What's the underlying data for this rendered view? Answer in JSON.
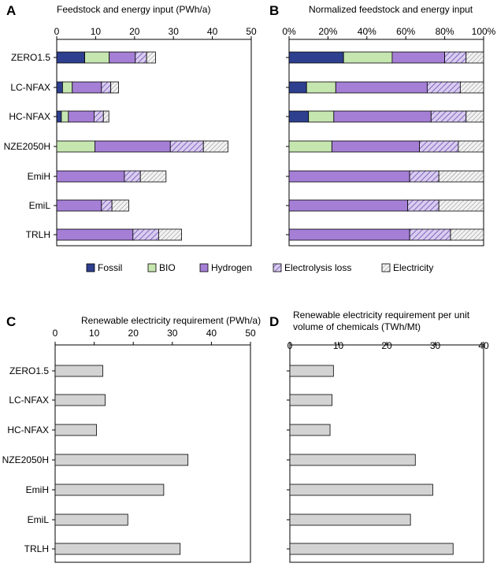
{
  "colors": {
    "fossil": "#2e3f8f",
    "bio": "#c6e6b0",
    "hydrogen": "#a57fd6",
    "electrolysis_loss_bg": "#d9ccf0",
    "electrolysis_loss_line": "#6a4fb0",
    "electricity_bg": "#f2f2f2",
    "electricity_line": "#888888",
    "renewable_bar": "#d3d3d3",
    "outline": "#000000"
  },
  "legend": [
    {
      "key": "fossil",
      "label": "Fossil"
    },
    {
      "key": "bio",
      "label": "BIO"
    },
    {
      "key": "hydrogen",
      "label": "Hydrogen"
    },
    {
      "key": "electrolysis_loss",
      "label": "Electrolysis loss"
    },
    {
      "key": "electricity",
      "label": "Electricity"
    }
  ],
  "chart_data": [
    {
      "panel": "A",
      "type": "bar",
      "orientation": "horizontal",
      "stacked": true,
      "title": "Feedstock and energy input (PWh/a)",
      "categories": [
        "ZERO1.5",
        "LC-NFAX",
        "HC-NFAX",
        "NZE2050H",
        "EmiH",
        "EmiL",
        "TRLH"
      ],
      "xlim": [
        0,
        50
      ],
      "ticks": [
        "0",
        "10",
        "20",
        "30",
        "40",
        "50"
      ],
      "tick_values": [
        0,
        10,
        20,
        30,
        40,
        50
      ],
      "series": [
        {
          "name": "Fossil",
          "key": "fossil",
          "values": [
            7.2,
            1.5,
            1.2,
            0,
            0,
            0,
            0
          ]
        },
        {
          "name": "BIO",
          "key": "bio",
          "values": [
            6.3,
            2.5,
            1.8,
            9.8,
            0,
            0,
            0
          ]
        },
        {
          "name": "Hydrogen",
          "key": "hydrogen",
          "values": [
            6.7,
            7.5,
            6.6,
            19.4,
            17.4,
            11.5,
            19.6
          ]
        },
        {
          "name": "Electrolysis loss",
          "key": "electrolysis_loss",
          "values": [
            2.9,
            2.4,
            2.4,
            8.5,
            4.1,
            2.7,
            6.6
          ]
        },
        {
          "name": "Electricity",
          "key": "electricity",
          "values": [
            2.3,
            2.0,
            1.4,
            6.3,
            6.6,
            4.3,
            5.9
          ]
        }
      ]
    },
    {
      "panel": "B",
      "type": "bar",
      "orientation": "horizontal",
      "stacked": true,
      "normalized": true,
      "title": "Normalized feedstock and energy input",
      "categories": [
        "ZERO1.5",
        "LC-NFAX",
        "HC-NFAX",
        "NZE2050H",
        "EmiH",
        "EmiL",
        "TRLH"
      ],
      "xlim": [
        0,
        100
      ],
      "ticks": [
        "0%",
        "20%",
        "40%",
        "60%",
        "80%",
        "100%"
      ],
      "tick_values": [
        0,
        20,
        40,
        60,
        80,
        100
      ],
      "series": [
        {
          "name": "Fossil",
          "key": "fossil",
          "values": [
            28,
            9,
            10,
            0,
            0,
            0,
            0
          ]
        },
        {
          "name": "BIO",
          "key": "bio",
          "values": [
            25,
            15,
            13,
            22,
            0,
            0,
            0
          ]
        },
        {
          "name": "Hydrogen",
          "key": "hydrogen",
          "values": [
            27,
            47,
            50,
            45,
            62,
            61,
            62
          ]
        },
        {
          "name": "Electrolysis loss",
          "key": "electrolysis_loss",
          "values": [
            11,
            17,
            18,
            20,
            15,
            16,
            21
          ]
        },
        {
          "name": "Electricity",
          "key": "electricity",
          "values": [
            9,
            12,
            9,
            13,
            23,
            23,
            17
          ]
        }
      ]
    },
    {
      "panel": "C",
      "type": "bar",
      "orientation": "horizontal",
      "title": "Renewable electricity requirement (PWh/a)",
      "categories": [
        "ZERO1.5",
        "LC-NFAX",
        "HC-NFAX",
        "NZE2050H",
        "EmiH",
        "EmiL",
        "TRLH"
      ],
      "xlim": [
        0,
        50
      ],
      "ticks": [
        "0",
        "10",
        "20",
        "30",
        "40",
        "50"
      ],
      "tick_values": [
        0,
        10,
        20,
        30,
        40,
        50
      ],
      "values": [
        12.2,
        12.8,
        10.6,
        34.0,
        27.8,
        18.6,
        32.0
      ]
    },
    {
      "panel": "D",
      "type": "bar",
      "orientation": "horizontal",
      "title": [
        "Renewable electricity requirement per unit",
        "volume of chemicals (TWh/Mt)"
      ],
      "categories": [
        "ZERO1.5",
        "LC-NFAX",
        "HC-NFAX",
        "NZE2050H",
        "EmiH",
        "EmiL",
        "TRLH"
      ],
      "xlim": [
        0,
        40
      ],
      "ticks": [
        "0",
        "10",
        "20",
        "30",
        "40"
      ],
      "tick_values": [
        0,
        10,
        20,
        30,
        40
      ],
      "values": [
        9.0,
        8.7,
        8.3,
        25.9,
        29.5,
        24.9,
        33.7
      ]
    }
  ]
}
